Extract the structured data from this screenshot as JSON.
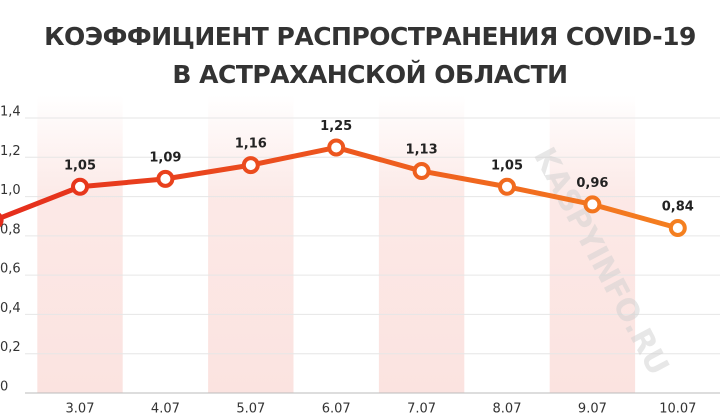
{
  "chart_data": {
    "type": "line",
    "title": [
      "КОЭФФИЦИЕНТ РАСПРОСТРАНЕНИЯ COVID-19",
      "В АСТРАХАНСКОЙ ОБЛАСТИ"
    ],
    "categories": [
      null,
      "3.07",
      "4.07",
      "5.07",
      "6.07",
      "7.07",
      "8.07",
      "9.07",
      "10.07"
    ],
    "values": [
      0.88,
      1.05,
      1.09,
      1.16,
      1.25,
      1.13,
      1.05,
      0.96,
      0.84
    ],
    "value_labels": [
      null,
      "1,05",
      "1,09",
      "1,16",
      "1,25",
      "1,13",
      "1,05",
      "0,96",
      "0,84"
    ],
    "line_colors": [
      "#e52d1c",
      "#f58220"
    ],
    "stripe_color": "#fbe3e0",
    "ylim": [
      0,
      1.4
    ],
    "yticks": [
      0,
      {
        "value": 0.2,
        "label": "0,2"
      },
      {
        "value": 0.4,
        "label": "0,4"
      },
      {
        "value": 0.6,
        "label": "0,6"
      },
      {
        "value": 0.8,
        "label": "0,8"
      },
      {
        "value": 1.0,
        "label": "1,0"
      },
      {
        "value": 1.2,
        "label": "1,2"
      },
      {
        "value": 1.4,
        "label": "1,4"
      }
    ],
    "grid": true,
    "watermark": "KASPYINFO.RU"
  }
}
